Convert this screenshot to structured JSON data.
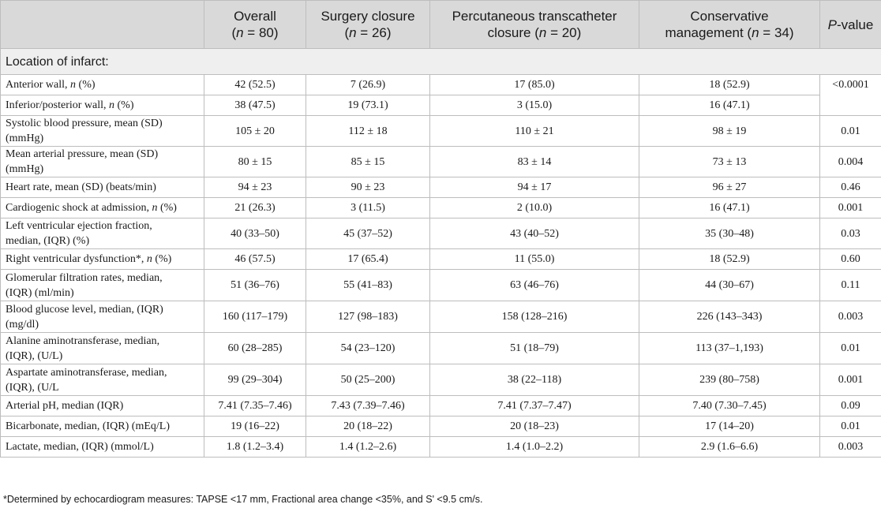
{
  "header": {
    "overall": {
      "line1": "Overall",
      "n_value": "80"
    },
    "surgery": {
      "line1": "Surgery closure",
      "n_value": "26"
    },
    "percutaneous": {
      "line1": "Percutaneous transcatheter",
      "line2": "closure",
      "n_value": "20"
    },
    "conservative": {
      "line1": "Conservative",
      "line2": "management",
      "n_value": "34"
    },
    "pvalue": {
      "p": "P",
      "rest": "-value"
    }
  },
  "section_label": "Location of infarct:",
  "rows": [
    {
      "pre": "Anterior wall, ",
      "n": "n",
      "post": " (%)",
      "overall": "42 (52.5)",
      "surgery": "7 (26.9)",
      "percutaneous": "17 (85.0)",
      "conservative": "18 (52.9)",
      "p": "<0.0001"
    },
    {
      "pre": "Inferior/posterior wall, ",
      "n": "n",
      "post": " (%)",
      "overall": "38 (47.5)",
      "surgery": "19 (73.1)",
      "percutaneous": "3 (15.0)",
      "conservative": "16 (47.1)",
      "p": ""
    },
    {
      "pre": "Systolic blood pressure, mean (SD)",
      "line2": "(mmHg)",
      "overall": "105 ± 20",
      "surgery": "112 ± 18",
      "percutaneous": "110 ± 21",
      "conservative": "98 ± 19",
      "p": "0.01"
    },
    {
      "pre": "Mean arterial pressure, mean (SD)",
      "line2": "(mmHg)",
      "overall": "80 ± 15",
      "surgery": "85 ± 15",
      "percutaneous": "83 ± 14",
      "conservative": "73 ± 13",
      "p": "0.004"
    },
    {
      "pre": "Heart rate, mean (SD) (beats/min)",
      "overall": "94 ± 23",
      "surgery": "90 ± 23",
      "percutaneous": "94 ± 17",
      "conservative": "96 ± 27",
      "p": "0.46"
    },
    {
      "pre": "Cardiogenic shock at admission, ",
      "n": "n",
      "post": " (%)",
      "overall": "21 (26.3)",
      "surgery": "3 (11.5)",
      "percutaneous": "2 (10.0)",
      "conservative": "16 (47.1)",
      "p": "0.001"
    },
    {
      "pre": "Left ventricular ejection fraction,",
      "line2": "median, (IQR) (%)",
      "overall": "40 (33–50)",
      "surgery": "45 (37–52)",
      "percutaneous": "43 (40–52)",
      "conservative": "35 (30–48)",
      "p": "0.03"
    },
    {
      "pre": "Right ventricular dysfunction*, ",
      "n": "n",
      "post": " (%)",
      "overall": "46 (57.5)",
      "surgery": "17 (65.4)",
      "percutaneous": "11 (55.0)",
      "conservative": "18 (52.9)",
      "p": "0.60"
    },
    {
      "pre": "Glomerular filtration rates, median,",
      "line2": "(IQR) (ml/min)",
      "overall": "51 (36–76)",
      "surgery": "55 (41–83)",
      "percutaneous": "63 (46–76)",
      "conservative": "44 (30–67)",
      "p": "0.11"
    },
    {
      "pre": "Blood glucose level, median, (IQR)",
      "line2": "(mg/dl)",
      "overall": "160 (117–179)",
      "surgery": "127 (98–183)",
      "percutaneous": "158 (128–216)",
      "conservative": "226 (143–343)",
      "p": "0.003"
    },
    {
      "pre": "Alanine aminotransferase, median,",
      "line2": "(IQR), (U/L)",
      "overall": "60 (28–285)",
      "surgery": "54 (23–120)",
      "percutaneous": "51 (18–79)",
      "conservative": "113 (37–1,193)",
      "p": "0.01"
    },
    {
      "pre": "Aspartate aminotransferase, median,",
      "line2": "(IQR), (U/L",
      "overall": "99 (29–304)",
      "surgery": "50 (25–200)",
      "percutaneous": "38 (22–118)",
      "conservative": "239 (80–758)",
      "p": "0.001"
    },
    {
      "pre": "Arterial pH, median (IQR)",
      "overall": "7.41 (7.35–7.46)",
      "surgery": "7.43 (7.39–7.46)",
      "percutaneous": "7.41 (7.37–7.47)",
      "conservative": "7.40 (7.30–7.45)",
      "p": "0.09"
    },
    {
      "pre": "Bicarbonate, median, (IQR) (mEq/L)",
      "overall": "19 (16–22)",
      "surgery": "20 (18–22)",
      "percutaneous": "20 (18–23)",
      "conservative": "17 (14–20)",
      "p": "0.01"
    },
    {
      "pre": "Lactate, median, (IQR) (mmol/L)",
      "overall": "1.8 (1.2–3.4)",
      "surgery": "1.4 (1.2–2.6)",
      "percutaneous": "1.4 (1.0–2.2)",
      "conservative": "2.9 (1.6–6.6)",
      "p": "0.003"
    }
  ],
  "footnote": "*Determined by echocardiogram measures: TAPSE <17 mm, Fractional area change <35%, and S' <9.5 cm/s."
}
